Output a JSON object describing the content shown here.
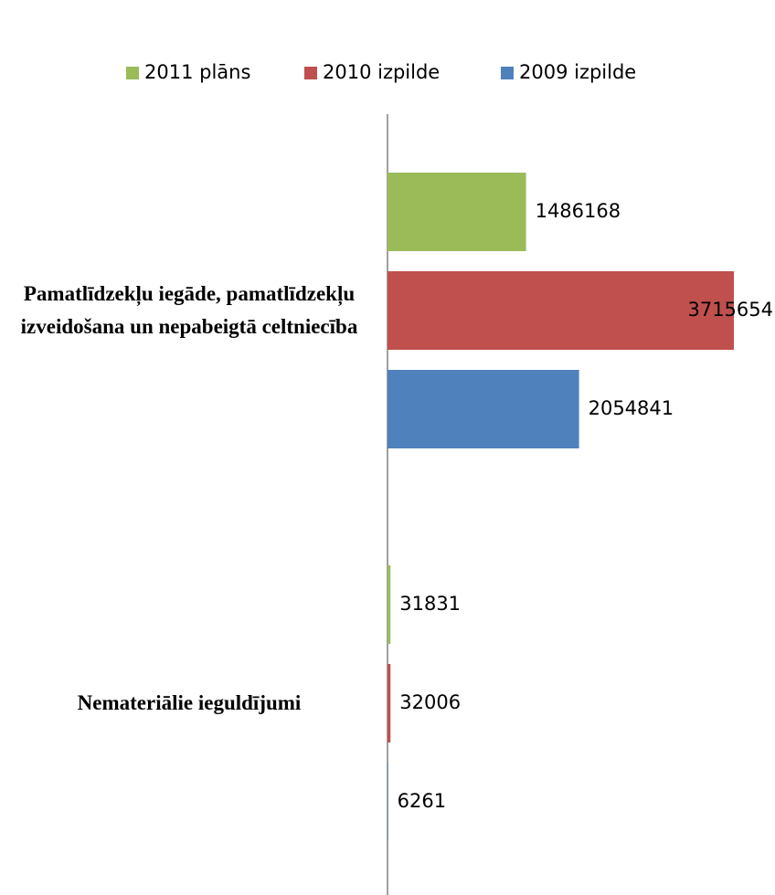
{
  "chart_data": {
    "type": "bar",
    "orientation": "horizontal",
    "categories": [
      "Pamatlīdzekļu iegāde, pamatlīdzekļu izveidošana un nepabeigtā  celtniecība",
      "Nemateriālie ieguldījumi"
    ],
    "series": [
      {
        "name": "2011 plāns",
        "color": "#9bbb59",
        "values": [
          1486168,
          31831
        ]
      },
      {
        "name": "2010 izpilde",
        "color": "#c0504d",
        "values": [
          3715654,
          32006
        ]
      },
      {
        "name": "2009 izpilde",
        "color": "#4f81bd",
        "values": [
          2054841,
          6261
        ]
      }
    ],
    "xlim": [
      0,
      4000000
    ],
    "legend": "top",
    "grid": false
  }
}
